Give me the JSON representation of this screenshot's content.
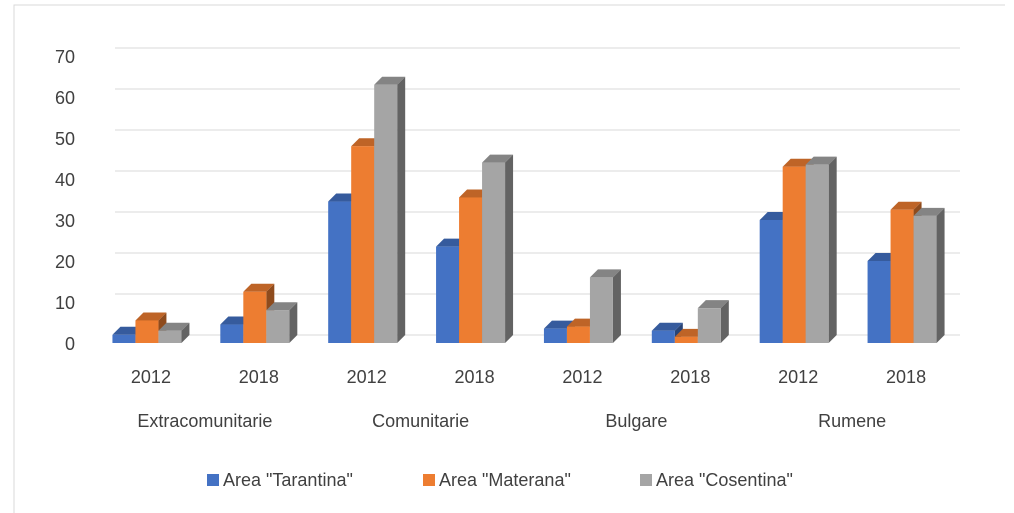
{
  "chart_data": {
    "type": "bar3d",
    "categories": [
      "2012",
      "2018",
      "2012",
      "2018",
      "2012",
      "2018",
      "2012",
      "2018"
    ],
    "groups": [
      "Extracomunitarie",
      "Comunitarie",
      "Bulgare",
      "Rumene"
    ],
    "series": [
      {
        "name": "Area \"Tarantina\"",
        "color": "#4472c4",
        "values": [
          2,
          4.5,
          34.5,
          23.5,
          3.5,
          3,
          30,
          20
        ]
      },
      {
        "name": "Area \"Materana\"",
        "color": "#ed7d31",
        "values": [
          5.5,
          12.5,
          48,
          35.5,
          4,
          1.5,
          43,
          32.5
        ]
      },
      {
        "name": "Area \"Cosentina\"",
        "color": "#a5a5a5",
        "values": [
          3,
          8,
          63,
          44,
          16,
          8.5,
          43.5,
          31
        ]
      }
    ],
    "ylim": [
      0,
      70
    ],
    "yticks": [
      0,
      10,
      20,
      30,
      40,
      50,
      60,
      70
    ],
    "grid": true,
    "legend": "bottom"
  }
}
